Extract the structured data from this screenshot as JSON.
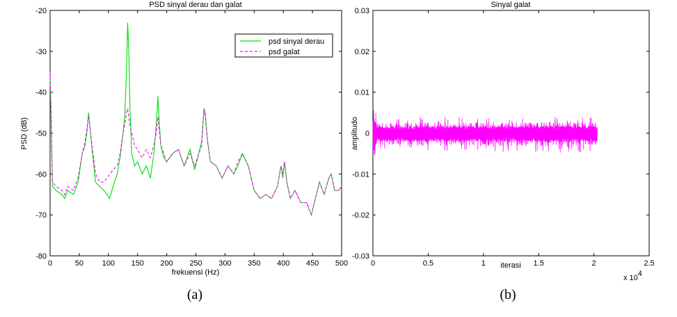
{
  "colors": {
    "derau": "#00dd00",
    "galat": "#ff00ff",
    "axis": "#000000",
    "background": "#ffffff"
  },
  "captions": [
    "(a)",
    "(b)"
  ],
  "chart_data": [
    {
      "type": "line",
      "title": "PSD sinyal derau dan galat",
      "xlabel": "frekuensi (Hz)",
      "ylabel": "PSD (dB)",
      "xlim": [
        0,
        500
      ],
      "ylim": [
        -80,
        -20
      ],
      "xticks": [
        0,
        50,
        100,
        150,
        200,
        250,
        300,
        350,
        400,
        450,
        500
      ],
      "yticks": [
        -80,
        -70,
        -60,
        -50,
        -40,
        -30,
        -20
      ],
      "xtick_labels": [
        "0",
        "50",
        "100",
        "150",
        "200",
        "250",
        "300",
        "350",
        "400",
        "450",
        "500"
      ],
      "ytick_labels": [
        "-80",
        "-70",
        "-60",
        "-50",
        "-40",
        "-30",
        "-20"
      ],
      "grid": false,
      "legend": "top-right",
      "series": [
        {
          "name": "psd sinyal derau",
          "style": "solid",
          "x": [
            0,
            2,
            4,
            10,
            20,
            25,
            30,
            40,
            48,
            55,
            60,
            63,
            66,
            68,
            72,
            78,
            85,
            92,
            98,
            102,
            108,
            115,
            120,
            125,
            128,
            131,
            133,
            135,
            137,
            140,
            145,
            150,
            158,
            165,
            172,
            178,
            182,
            185,
            187,
            190,
            195,
            200,
            210,
            220,
            230,
            240,
            248,
            255,
            260,
            264,
            266,
            270,
            275,
            285,
            295,
            305,
            315,
            322,
            330,
            340,
            350,
            360,
            370,
            380,
            390,
            396,
            399,
            402,
            406,
            412,
            420,
            430,
            440,
            448,
            455,
            462,
            470,
            478,
            482,
            488,
            495,
            500
          ],
          "y": [
            -36,
            -48,
            -63,
            -64,
            -65,
            -66,
            -64,
            -65,
            -62,
            -55,
            -53,
            -50,
            -45,
            -48,
            -54,
            -62,
            -63,
            -64,
            -65,
            -66,
            -63,
            -60,
            -56,
            -50,
            -46,
            -35,
            -23,
            -30,
            -44,
            -55,
            -58,
            -57,
            -60,
            -58,
            -61,
            -55,
            -48,
            -41,
            -47,
            -53,
            -56,
            -57,
            -55,
            -54,
            -58,
            -54,
            -59,
            -55,
            -52,
            -44,
            -45,
            -52,
            -57,
            -58,
            -61,
            -58,
            -60,
            -58,
            -55,
            -58,
            -64,
            -66,
            -65,
            -66,
            -63,
            -58,
            -61,
            -57,
            -62,
            -66,
            -64,
            -67,
            -67,
            -70,
            -66,
            -62,
            -65,
            -61,
            -60,
            -64,
            -64,
            -63
          ]
        },
        {
          "name": "psd galat",
          "style": "dashed",
          "x": [
            0,
            2,
            4,
            10,
            20,
            25,
            30,
            40,
            48,
            55,
            60,
            63,
            66,
            68,
            72,
            78,
            85,
            92,
            98,
            102,
            108,
            115,
            120,
            125,
            128,
            131,
            133,
            135,
            137,
            140,
            145,
            150,
            158,
            165,
            172,
            178,
            182,
            185,
            187,
            190,
            195,
            200,
            210,
            220,
            230,
            240,
            248,
            255,
            260,
            264,
            266,
            270,
            275,
            285,
            295,
            305,
            315,
            322,
            330,
            340,
            350,
            360,
            370,
            380,
            390,
            396,
            399,
            402,
            406,
            412,
            420,
            430,
            440,
            448,
            455,
            462,
            470,
            478,
            482,
            488,
            495,
            500
          ],
          "y": [
            -35,
            -47,
            -62,
            -63,
            -64,
            -65,
            -63,
            -64,
            -61,
            -55,
            -52,
            -49,
            -46,
            -48,
            -53,
            -60,
            -62,
            -62,
            -61,
            -60,
            -59,
            -58,
            -55,
            -50,
            -48,
            -45,
            -44,
            -46,
            -48,
            -50,
            -53,
            -54,
            -56,
            -54,
            -56,
            -53,
            -50,
            -46,
            -49,
            -53,
            -55,
            -57,
            -55,
            -54,
            -58,
            -55,
            -58,
            -55,
            -53,
            -44,
            -46,
            -52,
            -57,
            -58,
            -61,
            -58,
            -60,
            -57,
            -55,
            -58,
            -64,
            -66,
            -65,
            -66,
            -63,
            -58,
            -60,
            -57,
            -62,
            -66,
            -64,
            -67,
            -67,
            -70,
            -66,
            -62,
            -65,
            -61,
            -60,
            -64,
            -64,
            -63
          ]
        }
      ]
    },
    {
      "type": "line",
      "title": "Sinyal galat",
      "xlabel": "iterasi",
      "ylabel": "amplitudo",
      "xlim": [
        0,
        25000
      ],
      "ylim": [
        -0.03,
        0.03
      ],
      "xticks": [
        0,
        5000,
        10000,
        15000,
        20000,
        25000
      ],
      "yticks": [
        -0.03,
        -0.02,
        -0.01,
        0,
        0.01,
        0.02,
        0.03
      ],
      "xtick_labels": [
        "0",
        "0.5",
        "1",
        "1.5",
        "2",
        "2.5"
      ],
      "ytick_labels": [
        "-0.03",
        "-0.02",
        "-0.01",
        "0",
        "0.01",
        "0.02",
        "0.03"
      ],
      "x_multiplier_label": "x 10",
      "x_multiplier_exponent": "4",
      "grid": false,
      "series": [
        {
          "style": "solid",
          "x": [
            0,
            200,
            300,
            500,
            1000,
            5000,
            10000,
            15000,
            20000,
            20300
          ],
          "y_upper": [
            0.007,
            0.006,
            0.004,
            0.003,
            0.0028,
            0.003,
            0.0029,
            0.003,
            0.0029,
            0.0028
          ],
          "y_lower": [
            -0.007,
            -0.006,
            -0.004,
            -0.0035,
            -0.0032,
            -0.0035,
            -0.0034,
            -0.0036,
            -0.0035,
            -0.0034
          ]
        }
      ]
    }
  ]
}
